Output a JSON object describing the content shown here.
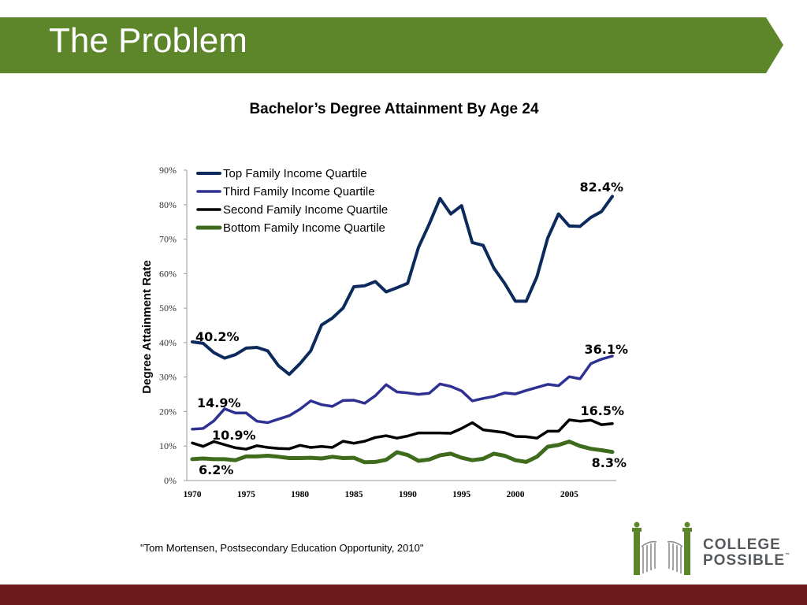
{
  "slide": {
    "title": "The Problem",
    "source": "\"Tom Mortensen, Postsecondary Education Opportunity, 2010\"",
    "logo_line1": "COLLEGE",
    "logo_line2": "POSSIBLE",
    "logo_tm": "™",
    "colors": {
      "banner": "#5d862b",
      "footer": "#6e1a1a"
    }
  },
  "chart_data": {
    "type": "line",
    "title": "Bachelor’s Degree Attainment By Age 24",
    "ylabel": "Degree Attainment Rate",
    "xlabel": "",
    "xlim": [
      1970,
      2009
    ],
    "ylim": [
      0,
      90
    ],
    "x_ticks": [
      1970,
      1975,
      1980,
      1985,
      1990,
      1995,
      2000,
      2005
    ],
    "y_ticks": [
      "0%",
      "10%",
      "20%",
      "30%",
      "40%",
      "50%",
      "60%",
      "70%",
      "80%",
      "90%"
    ],
    "y_tick_values": [
      0,
      10,
      20,
      30,
      40,
      50,
      60,
      70,
      80,
      90
    ],
    "grid": false,
    "legend_position": "top-left",
    "x": [
      1970,
      1971,
      1972,
      1973,
      1974,
      1975,
      1976,
      1977,
      1978,
      1979,
      1980,
      1981,
      1982,
      1983,
      1984,
      1985,
      1986,
      1987,
      1988,
      1989,
      1990,
      1991,
      1992,
      1993,
      1994,
      1995,
      1996,
      1997,
      1998,
      1999,
      2000,
      2001,
      2002,
      2003,
      2004,
      2005,
      2006,
      2007,
      2008,
      2009
    ],
    "series": [
      {
        "name": "Top Family Income Quartile",
        "color": "#0d2a5c",
        "values": [
          40.2,
          39.8,
          37.1,
          35.5,
          36.5,
          38.4,
          38.6,
          37.6,
          33.3,
          30.8,
          33.9,
          37.6,
          45.1,
          47.1,
          50.0,
          56.2,
          56.5,
          57.7,
          54.7,
          55.9,
          57.2,
          67.6,
          74.4,
          81.8,
          77.3,
          79.7,
          69.0,
          68.2,
          61.6,
          57.2,
          52.0,
          52.0,
          59.1,
          70.3,
          77.3,
          73.8,
          73.7,
          76.3,
          78.0,
          82.4
        ],
        "start_label": "40.2%",
        "end_label": "82.4%"
      },
      {
        "name": "Third Family Income Quartile",
        "color": "#2e3192",
        "values": [
          14.9,
          15.1,
          17.3,
          20.8,
          19.6,
          19.6,
          17.2,
          16.8,
          17.8,
          18.8,
          20.7,
          23.1,
          22.0,
          21.5,
          23.2,
          23.3,
          22.4,
          24.6,
          27.8,
          25.7,
          25.4,
          25.0,
          25.3,
          28.0,
          27.3,
          26.0,
          23.1,
          23.8,
          24.4,
          25.4,
          25.1,
          26.1,
          27.0,
          27.9,
          27.5,
          30.1,
          29.5,
          33.9,
          35.2,
          36.1
        ],
        "start_label": "14.9%",
        "end_label": "36.1%"
      },
      {
        "name": "Second Family Income Quartile",
        "color": "#000000",
        "values": [
          10.9,
          9.9,
          11.3,
          10.4,
          9.5,
          9.1,
          10.1,
          9.6,
          9.3,
          9.2,
          10.2,
          9.6,
          9.9,
          9.6,
          11.4,
          10.8,
          11.4,
          12.5,
          13.0,
          12.3,
          12.9,
          13.8,
          13.8,
          13.8,
          13.7,
          15.1,
          16.8,
          14.7,
          14.3,
          13.9,
          12.8,
          12.7,
          12.3,
          14.3,
          14.3,
          17.6,
          17.2,
          17.5,
          16.2,
          16.5
        ],
        "start_label": "10.9%",
        "end_label": "16.5%"
      },
      {
        "name": "Bottom Family Income Quartile",
        "color": "#3e6b1c",
        "values": [
          6.2,
          6.4,
          6.2,
          6.2,
          5.9,
          7.0,
          7.0,
          7.2,
          6.9,
          6.5,
          6.5,
          6.6,
          6.4,
          6.9,
          6.5,
          6.6,
          5.3,
          5.4,
          6.0,
          8.2,
          7.4,
          5.7,
          6.1,
          7.3,
          7.8,
          6.6,
          5.9,
          6.3,
          7.8,
          7.2,
          5.9,
          5.4,
          6.9,
          9.8,
          10.3,
          11.3,
          10.0,
          9.2,
          8.8,
          8.3
        ],
        "start_label": "6.2%",
        "end_label": "8.3%"
      }
    ]
  }
}
